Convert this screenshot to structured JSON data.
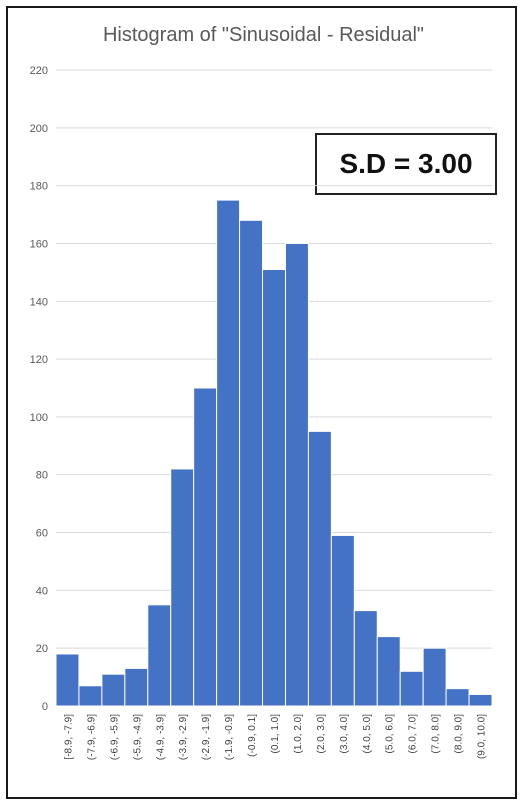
{
  "chart_data": {
    "type": "bar",
    "title": "Histogram of \"Sinusoidal - Residual\"",
    "annotation": "S.D = 3.00",
    "categories": [
      "[-8.9, -7.9]",
      "(-7.9, -6.9]",
      "(-6.9, -5.9]",
      "(-5.9, -4.9]",
      "(-4.9, -3.9]",
      "(-3.9, -2.9]",
      "(-2.9, -1.9]",
      "(-1.9, -0.9]",
      "(-0.9, 0.1]",
      "(0.1, 1.0]",
      "(1.0, 2.0]",
      "(2.0, 3.0]",
      "(3.0, 4.0]",
      "(4.0, 5.0]",
      "(5.0, 6.0]",
      "(6.0, 7.0]",
      "(7.0, 8.0]",
      "(8.0, 9.0]",
      "(9.0, 10.0]"
    ],
    "values": [
      18,
      7,
      11,
      13,
      35,
      82,
      110,
      175,
      168,
      151,
      160,
      95,
      59,
      33,
      24,
      12,
      20,
      6,
      4
    ],
    "ylim": [
      0,
      220
    ],
    "yticks": [
      0,
      20,
      40,
      60,
      80,
      100,
      120,
      140,
      160,
      180,
      200,
      220
    ],
    "grid": true,
    "colors": {
      "bar": "#4472C4",
      "grid": "#d9d9d9",
      "bar_edge": "#ffffff"
    }
  }
}
